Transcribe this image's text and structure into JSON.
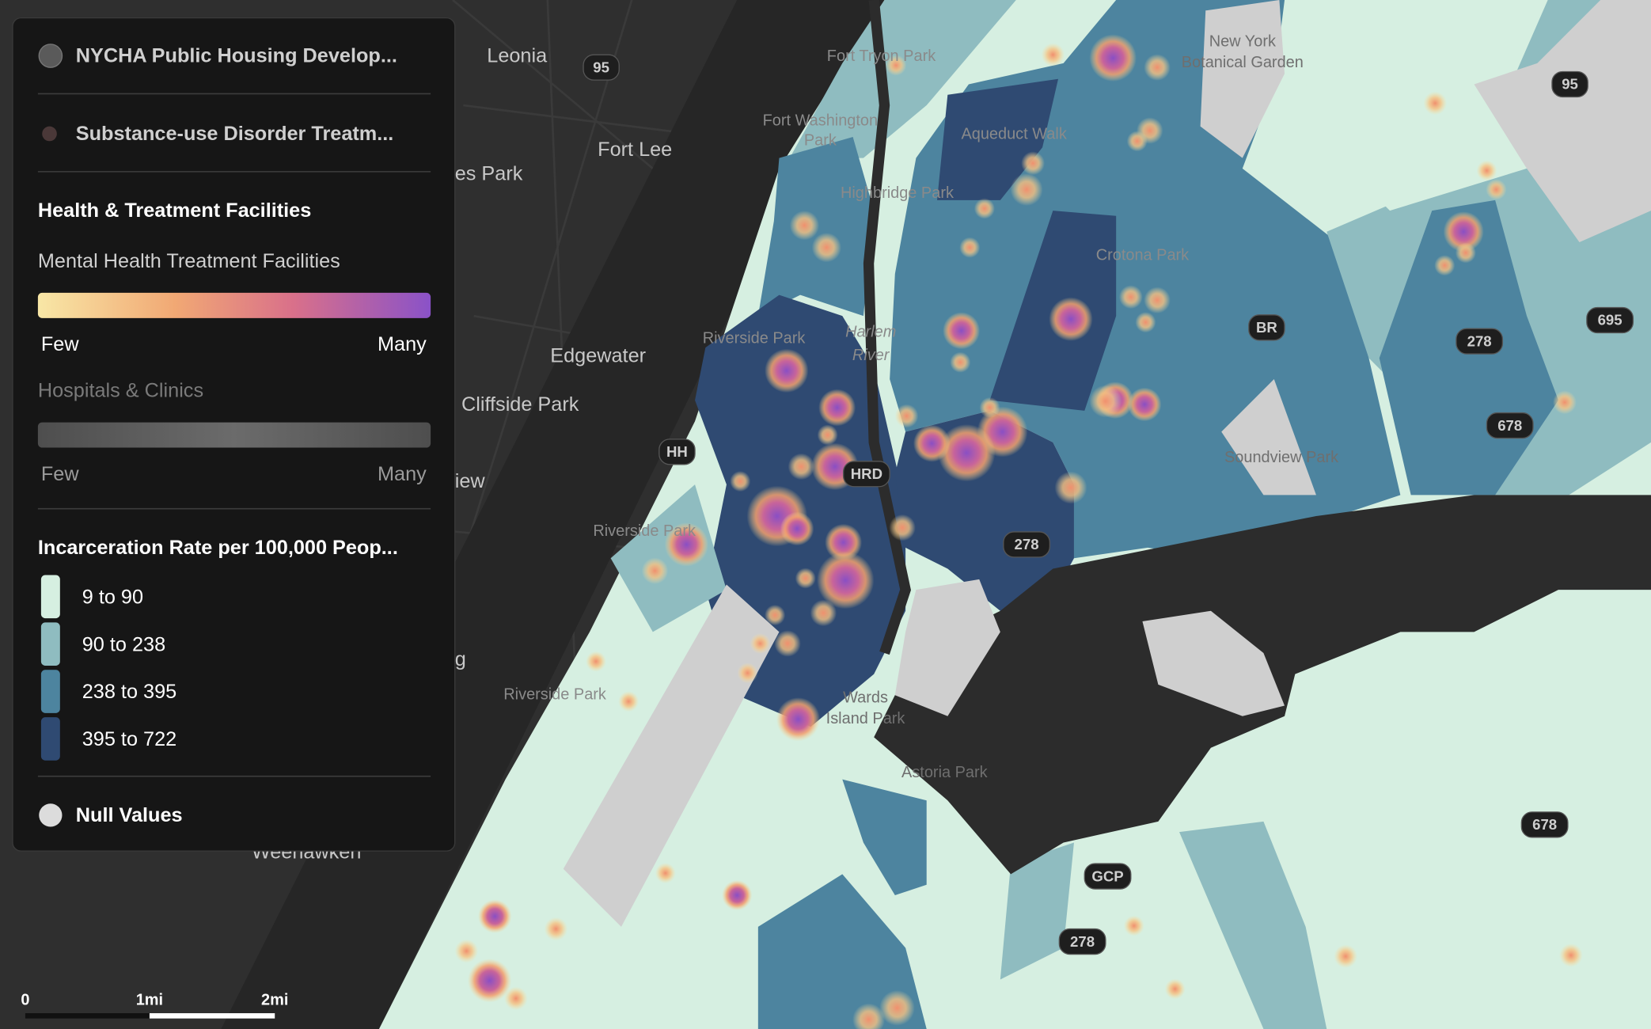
{
  "legend": {
    "layers": [
      "NYCHA Public Housing Develop...",
      "Substance-use Disorder Treatm..."
    ],
    "group_title": "Health & Treatment Facilities",
    "heatmaps": [
      {
        "title": "Mental Health Treatment Facilities",
        "low": "Few",
        "high": "Many"
      },
      {
        "title": "Hospitals & Clinics",
        "low": "Few",
        "high": "Many"
      }
    ],
    "choropleth": {
      "title": "Incarceration Rate per 100,000 Peop...",
      "classes": [
        "9 to 90",
        "90 to 238",
        "238 to 395",
        "395 to 722"
      ]
    },
    "null_label": "Null Values"
  },
  "map_labels": [
    "Leonia",
    "Fort Lee",
    "Edgewater",
    "Cliffside Park",
    "es Park",
    "iew",
    "g",
    "Weehawken",
    "Fort Tryon Park",
    "Fort Washington",
    "Park",
    "Highbridge Park",
    "Aqueduct Walk",
    "Crotona Park",
    "New York",
    "Botanical Garden",
    "Riverside Park",
    "Harlem",
    "River",
    "Riverside Park",
    "Riverside Park",
    "Wards",
    "Island Park",
    "Astoria Park",
    "Soundview Park"
  ],
  "shields": [
    "95",
    "HH",
    "HRD",
    "278",
    "BR",
    "278",
    "678",
    "695",
    "95",
    "678",
    "GCP",
    "278"
  ],
  "scale_bar": [
    "0",
    "1mi",
    "2mi"
  ]
}
